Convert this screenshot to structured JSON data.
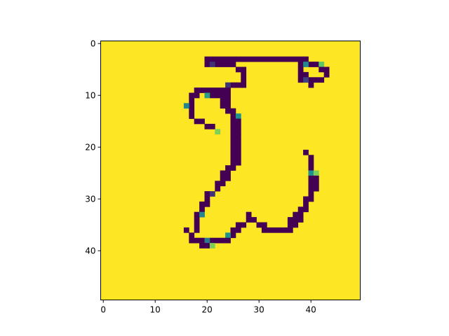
{
  "chart_data": {
    "type": "heatmap",
    "title": "",
    "xlabel": "",
    "ylabel": "",
    "shape": [
      50,
      50
    ],
    "xlim": [
      -0.5,
      49.5
    ],
    "ylim": [
      49.5,
      -0.5
    ],
    "origin": "upper",
    "colormap": "viridis",
    "background_value": 1.0,
    "x_ticks": [
      0,
      10,
      20,
      30,
      40
    ],
    "y_ticks": [
      0,
      10,
      20,
      30,
      40
    ],
    "grid": false,
    "legend": "none",
    "colors": {
      "low": "#440154",
      "low_mid": "#3b528b",
      "mid": "#21918c",
      "high_mid": "#5ec962",
      "high": "#fde725"
    },
    "cells": [
      {
        "row": 3,
        "cols": [
          20,
          21,
          22,
          23,
          24,
          25,
          26,
          27,
          28,
          29,
          30,
          31,
          32,
          33,
          34,
          35,
          36,
          37,
          38,
          39
        ],
        "v": 0
      },
      {
        "row": 4,
        "cols": [
          20,
          22,
          23,
          24,
          25,
          38,
          40,
          41
        ],
        "v": 0
      },
      {
        "row": 4,
        "cols": [
          21
        ],
        "v": 0.15
      },
      {
        "row": 4,
        "cols": [
          39
        ],
        "v": 0.45
      },
      {
        "row": 4,
        "cols": [
          42
        ],
        "v": 0.75
      },
      {
        "row": 5,
        "cols": [
          26,
          27,
          38,
          42,
          43
        ],
        "v": 0
      },
      {
        "row": 6,
        "cols": [
          27,
          38,
          39,
          43
        ],
        "v": 0
      },
      {
        "row": 7,
        "cols": [
          27,
          38,
          40,
          41,
          42
        ],
        "v": 0
      },
      {
        "row": 7,
        "cols": [
          39
        ],
        "v": 0.2
      },
      {
        "row": 8,
        "cols": [
          25,
          26,
          27,
          40
        ],
        "v": 0
      },
      {
        "row": 8,
        "cols": [
          24
        ],
        "v": 0.15
      },
      {
        "row": 9,
        "cols": [
          18,
          19,
          20,
          21,
          22,
          23,
          24
        ],
        "v": 0
      },
      {
        "row": 10,
        "cols": [
          18,
          21,
          22,
          23,
          24
        ],
        "v": 0
      },
      {
        "row": 10,
        "cols": [
          17
        ],
        "v": 0
      },
      {
        "row": 10,
        "cols": [
          20
        ],
        "v": 0.55
      },
      {
        "row": 11,
        "cols": [
          17,
          23,
          24
        ],
        "v": 0
      },
      {
        "row": 12,
        "cols": [
          17,
          23,
          24
        ],
        "v": 0
      },
      {
        "row": 12,
        "cols": [
          16
        ],
        "v": 0.45
      },
      {
        "row": 13,
        "cols": [
          17,
          24,
          25
        ],
        "v": 0
      },
      {
        "row": 14,
        "cols": [
          17,
          25
        ],
        "v": 0
      },
      {
        "row": 14,
        "cols": [
          26
        ],
        "v": 0.5
      },
      {
        "row": 15,
        "cols": [
          18,
          19,
          25,
          26
        ],
        "v": 0
      },
      {
        "row": 16,
        "cols": [
          20,
          21,
          25,
          26
        ],
        "v": 0
      },
      {
        "row": 17,
        "cols": [
          25,
          26
        ],
        "v": 0
      },
      {
        "row": 17,
        "cols": [
          22
        ],
        "v": 0.8
      },
      {
        "row": 18,
        "cols": [
          25,
          26
        ],
        "v": 0
      },
      {
        "row": 19,
        "cols": [
          25,
          26
        ],
        "v": 0
      },
      {
        "row": 20,
        "cols": [
          25,
          26
        ],
        "v": 0
      },
      {
        "row": 21,
        "cols": [
          25,
          26,
          39
        ],
        "v": 0
      },
      {
        "row": 22,
        "cols": [
          25,
          26,
          40
        ],
        "v": 0
      },
      {
        "row": 23,
        "cols": [
          25,
          26,
          40
        ],
        "v": 0
      },
      {
        "row": 24,
        "cols": [
          24,
          25,
          40
        ],
        "v": 0
      },
      {
        "row": 25,
        "cols": [
          23,
          24,
          40
        ],
        "v": 0
      },
      {
        "row": 25,
        "cols": [
          40
        ],
        "v": 0.5
      },
      {
        "row": 25,
        "cols": [
          41
        ],
        "v": 0.8
      },
      {
        "row": 26,
        "cols": [
          23,
          24,
          40,
          41
        ],
        "v": 0
      },
      {
        "row": 27,
        "cols": [
          22,
          23,
          40,
          41
        ],
        "v": 0
      },
      {
        "row": 28,
        "cols": [
          22,
          40,
          41
        ],
        "v": 0
      },
      {
        "row": 29,
        "cols": [
          20,
          40
        ],
        "v": 0
      },
      {
        "row": 29,
        "cols": [
          21
        ],
        "v": 0.15
      },
      {
        "row": 30,
        "cols": [
          20,
          39,
          40
        ],
        "v": 0
      },
      {
        "row": 31,
        "cols": [
          19,
          20,
          39
        ],
        "v": 0
      },
      {
        "row": 32,
        "cols": [
          19,
          38,
          39
        ],
        "v": 0
      },
      {
        "row": 33,
        "cols": [
          18,
          28,
          37,
          38
        ],
        "v": 0
      },
      {
        "row": 33,
        "cols": [
          19
        ],
        "v": 0.45
      },
      {
        "row": 34,
        "cols": [
          18,
          28,
          29,
          36,
          37,
          38
        ],
        "v": 0
      },
      {
        "row": 35,
        "cols": [
          18,
          26,
          27,
          30,
          31,
          36,
          37
        ],
        "v": 0
      },
      {
        "row": 36,
        "cols": [
          16,
          18,
          25,
          26,
          31,
          32,
          33,
          34,
          35,
          36
        ],
        "v": 0
      },
      {
        "row": 37,
        "cols": [
          17,
          25
        ],
        "v": 0
      },
      {
        "row": 37,
        "cols": [
          24
        ],
        "v": 0.5
      },
      {
        "row": 38,
        "cols": [
          17,
          18,
          19,
          21,
          22,
          23,
          24
        ],
        "v": 0
      },
      {
        "row": 38,
        "cols": [
          20
        ],
        "v": 0.4
      },
      {
        "row": 39,
        "cols": [
          19,
          20
        ],
        "v": 0
      },
      {
        "row": 39,
        "cols": [
          21
        ],
        "v": 0.8
      }
    ]
  }
}
